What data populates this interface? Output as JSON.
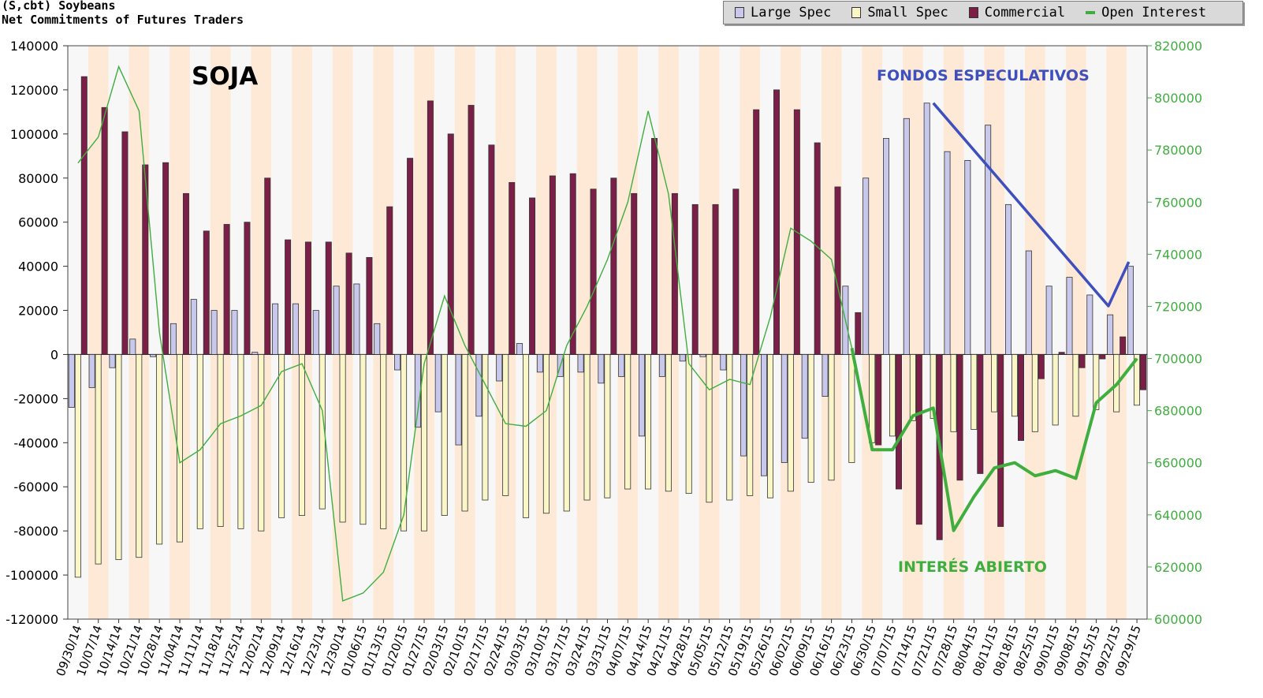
{
  "header": {
    "symbol": "(S,cbt) Soybeans",
    "subtitle": "Net Commitments of Futures Traders"
  },
  "legend": [
    {
      "label": "Large Spec",
      "color": "#c8c8ec",
      "kind": "box"
    },
    {
      "label": "Small Spec",
      "color": "#fbf6c8",
      "kind": "box"
    },
    {
      "label": "Commercial",
      "color": "#7b1f48",
      "kind": "box"
    },
    {
      "label": "Open Interest",
      "color": "#3fae3f",
      "kind": "line"
    }
  ],
  "annotations": {
    "title": "SOJA",
    "funds": "FONDOS ESPECULATIVOS",
    "oi": "INTERÉS ABIERTO"
  },
  "chart_data": {
    "type": "bar",
    "title": "Net Commitments of Futures Traders",
    "categories": [
      "09/30/14",
      "10/07/14",
      "10/14/14",
      "10/21/14",
      "10/28/14",
      "11/04/14",
      "11/11/14",
      "11/18/14",
      "11/25/14",
      "12/02/14",
      "12/09/14",
      "12/16/14",
      "12/23/14",
      "12/30/14",
      "01/06/15",
      "01/13/15",
      "01/20/15",
      "01/27/15",
      "02/03/15",
      "02/10/15",
      "02/17/15",
      "02/24/15",
      "03/03/15",
      "03/10/15",
      "03/17/15",
      "03/24/15",
      "03/31/15",
      "04/07/15",
      "04/14/15",
      "04/21/15",
      "04/28/15",
      "05/05/15",
      "05/12/15",
      "05/19/15",
      "05/26/15",
      "06/02/15",
      "06/09/15",
      "06/16/15",
      "06/23/15",
      "06/30/15",
      "07/07/15",
      "07/14/15",
      "07/21/15",
      "07/28/15",
      "08/04/15",
      "08/11/15",
      "08/18/15",
      "08/25/15",
      "09/01/15",
      "09/08/15",
      "09/15/15",
      "09/22/15",
      "09/29/15"
    ],
    "x_tick_labels": [
      "09/30/14",
      "10/07/14",
      "10/14/14",
      "10/21/14",
      "10/28/14",
      "11/04/14",
      "11/11/14",
      "11/18/14",
      "11/25/14",
      "12/02/14",
      "12/09/14",
      "12/16/14",
      "12/23/14",
      "12/30/14",
      "01/06/15",
      "01/13/15",
      "01/20/15",
      "01/27/15",
      "02/03/15",
      "02/10/15",
      "02/17/15",
      "02/24/15",
      "03/03/15",
      "03/10/15",
      "03/17/15",
      "03/24/15",
      "03/31/15",
      "04/07/15",
      "04/14/15",
      "04/21/15",
      "04/28/15",
      "05/05/15",
      "05/12/15",
      "05/19/15",
      "05/26/15",
      "06/02/15",
      "06/09/15",
      "06/16/15",
      "06/23/15",
      "06/30/15",
      "07/07/15",
      "07/14/15",
      "07/21/15",
      "07/28/15",
      "08/04/15",
      "08/11/15",
      "08/18/15",
      "08/25/15",
      "09/01/15",
      "09/08/15",
      "09/15/15",
      "09/22/15",
      "09/29/15"
    ],
    "series": [
      {
        "name": "Large Spec",
        "values": [
          -24000,
          -15000,
          -6000,
          7000,
          -1000,
          14000,
          25000,
          20000,
          20000,
          1000,
          23000,
          23000,
          20000,
          31000,
          32000,
          14000,
          -7000,
          -33000,
          -26000,
          -41000,
          -28000,
          -12000,
          5000,
          -8000,
          -10000,
          -8000,
          -13000,
          -10000,
          -37000,
          -10000,
          -3000,
          -1000,
          -7000,
          -46000,
          -55000,
          -49000,
          -38000,
          -19000,
          31000,
          80000,
          98000,
          107000,
          114000,
          92000,
          88000,
          104000,
          68000,
          47000,
          31000,
          35000,
          27000,
          18000,
          40000
        ]
      },
      {
        "name": "Small Spec",
        "values": [
          -101000,
          -95000,
          -93000,
          -92000,
          -86000,
          -85000,
          -79000,
          -78000,
          -79000,
          -80000,
          -74000,
          -73000,
          -70000,
          -76000,
          -77000,
          -79000,
          -80000,
          -80000,
          -73000,
          -71000,
          -66000,
          -64000,
          -74000,
          -72000,
          -71000,
          -66000,
          -65000,
          -61000,
          -61000,
          -62000,
          -63000,
          -67000,
          -66000,
          -64000,
          -65000,
          -62000,
          -58000,
          -57000,
          -49000,
          -40000,
          -37000,
          -30000,
          -29000,
          -35000,
          -34000,
          -26000,
          -28000,
          -35000,
          -32000,
          -28000,
          -25000,
          -26000,
          -23000
        ]
      },
      {
        "name": "Commercial",
        "values": [
          126000,
          112000,
          101000,
          86000,
          87000,
          73000,
          56000,
          59000,
          60000,
          80000,
          52000,
          51000,
          51000,
          46000,
          44000,
          67000,
          89000,
          115000,
          100000,
          113000,
          95000,
          78000,
          71000,
          81000,
          82000,
          75000,
          80000,
          73000,
          98000,
          73000,
          68000,
          68000,
          75000,
          111000,
          120000,
          111000,
          96000,
          76000,
          19000,
          -41000,
          -61000,
          -77000,
          -84000,
          -57000,
          -54000,
          -78000,
          -39000,
          -11000,
          1000,
          -6000,
          -2000,
          8000,
          -16000
        ]
      },
      {
        "name": "Open Interest",
        "axis": "right",
        "values": [
          775000,
          785000,
          812000,
          795000,
          710000,
          660000,
          665000,
          675000,
          678000,
          682000,
          695000,
          698000,
          680000,
          607000,
          610000,
          618000,
          640000,
          698000,
          724000,
          705000,
          690000,
          675000,
          674000,
          680000,
          705000,
          720000,
          738000,
          760000,
          795000,
          763000,
          698000,
          688000,
          692000,
          690000,
          716000,
          750000,
          745000,
          738000,
          704000,
          665000,
          665000,
          678000,
          681000,
          634000,
          647000,
          658000,
          660000,
          655000,
          657000,
          654000,
          683000,
          690000,
          700000
        ]
      }
    ],
    "overlay_lines": [
      {
        "name": "FONDOS ESPECULATIVOS",
        "color": "#3e4fbe",
        "axis": "left",
        "points": [
          [
            42,
            114000
          ],
          [
            50.6,
            22000
          ],
          [
            51.6,
            42000
          ]
        ]
      }
    ],
    "y_left": {
      "min": -120000,
      "max": 140000,
      "step": 20000
    },
    "y_right": {
      "min": 600000,
      "max": 820000,
      "step": 20000
    },
    "y_left_ticks": [
      "140000",
      "120000",
      "100000",
      "80000",
      "60000",
      "40000",
      "20000",
      "0",
      "-20000",
      "-40000",
      "-60000",
      "-80000",
      "-100000",
      "-120000"
    ],
    "y_right_ticks": [
      "820000",
      "800000",
      "780000",
      "760000",
      "740000",
      "720000",
      "700000",
      "680000",
      "660000",
      "640000",
      "620000",
      "600000"
    ],
    "legend_position": "top-right",
    "grid": "alternating-vertical-bands",
    "colors": {
      "large": "#c8c8ec",
      "small": "#fbf6c8",
      "commercial": "#7b1f48",
      "oi": "#3fae3f",
      "oi_bold": "#3fae3f",
      "funds_line": "#3e4fbe",
      "band_a": "#f7f7f7",
      "band_b": "#fde9d6",
      "right_axis": "#3fae3f"
    }
  }
}
